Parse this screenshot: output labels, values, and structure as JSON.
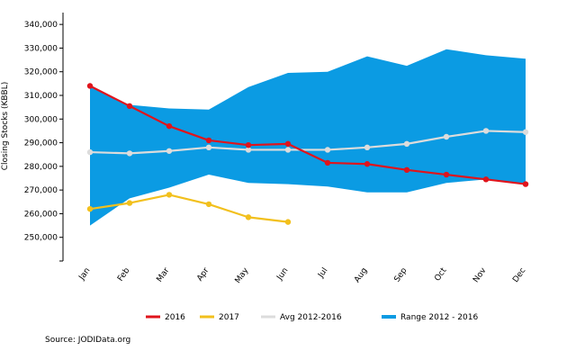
{
  "chart_data": {
    "type": "line",
    "ylabel": "Closing Stocks (KBBL)",
    "ylim": [
      240000,
      345000
    ],
    "yticks": [
      250000,
      260000,
      270000,
      280000,
      290000,
      300000,
      310000,
      320000,
      330000,
      340000
    ],
    "ytick_labels": [
      "250,000",
      "260,000",
      "270,000",
      "280,000",
      "290,000",
      "300,000",
      "310,000",
      "320,000",
      "330,000",
      "340,000"
    ],
    "categories": [
      "Jan",
      "Feb",
      "Mar",
      "Apr",
      "May",
      "Jun",
      "Jul",
      "Aug",
      "Sep",
      "Oct",
      "Nov",
      "Dec"
    ],
    "range": {
      "name": "Range 2012 - 2016",
      "color": "#0b9be3",
      "upper": [
        313500,
        306000,
        304500,
        304000,
        313500,
        319500,
        320000,
        326500,
        322500,
        329500,
        327000,
        325500
      ],
      "lower": [
        255000,
        266500,
        271000,
        276500,
        273000,
        272500,
        271500,
        269000,
        269000,
        273000,
        274500,
        272500
      ]
    },
    "series": [
      {
        "name": "2016",
        "color": "#e0141c",
        "values": [
          314000,
          305500,
          297000,
          291000,
          289000,
          289500,
          281500,
          281000,
          278500,
          276500,
          274500,
          272500
        ]
      },
      {
        "name": "2017",
        "color": "#f2c01d",
        "values": [
          262000,
          264500,
          268000,
          264000,
          258500,
          256500,
          null,
          null,
          null,
          null,
          null,
          null
        ]
      },
      {
        "name": "Avg 2012-2016",
        "color": "#dcdcdc",
        "values": [
          286000,
          285500,
          286500,
          288000,
          287000,
          287000,
          287000,
          288000,
          289500,
          292500,
          295000,
          294500
        ]
      }
    ],
    "legend_order": [
      "2016",
      "2017",
      "Avg 2012-2016",
      "Range 2012 - 2016"
    ],
    "legend_position": "bottom",
    "grid": false
  },
  "source": "Source: JODIData.org"
}
